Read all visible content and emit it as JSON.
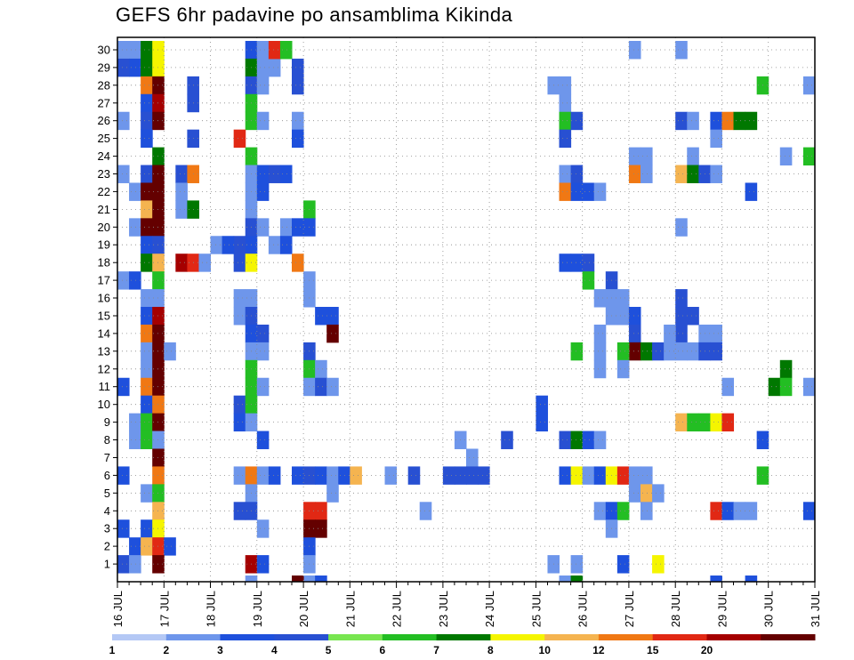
{
  "title": "GEFS 6hr padavine po ansamblima Kikinda",
  "chart_data": {
    "type": "heatmap",
    "title": "GEFS 6hr padavine po ansamblima Kikinda",
    "x_ticks": [
      "16 JUL",
      "17 JUL",
      "18 JUL",
      "19 JUL",
      "20 JUL",
      "21 JUL",
      "22 JUL",
      "23 JUL",
      "24 JUL",
      "25 JUL",
      "26 JUL",
      "27 JUL",
      "28 JUL",
      "29 JUL",
      "30 JUL",
      "31 JUL"
    ],
    "x_range": [
      "16 JUL 00UTC",
      "31 JUL 00UTC"
    ],
    "x_step": "6hr",
    "y_ticks": [
      1,
      2,
      3,
      4,
      5,
      6,
      7,
      8,
      9,
      10,
      11,
      12,
      13,
      14,
      15,
      16,
      17,
      18,
      19,
      20,
      21,
      22,
      23,
      24,
      25,
      26,
      27,
      28,
      29,
      30
    ],
    "grid": true,
    "colorbar": {
      "labels": [
        "1",
        "2",
        "3",
        "4",
        "5",
        "6",
        "7",
        "8",
        "10",
        "12",
        "15",
        "20"
      ],
      "colors": [
        "#b4c8f5",
        "#6e96eb",
        "#1e50dc",
        "#2850d2",
        "#78e650",
        "#23be23",
        "#007800",
        "#f5f500",
        "#f5b450",
        "#f07814",
        "#e12814",
        "#a50000",
        "#640000"
      ]
    },
    "cells": [
      [
        0,
        30,
        1
      ],
      [
        1,
        30,
        1
      ],
      [
        2,
        30,
        6
      ],
      [
        3,
        30,
        7
      ],
      [
        1,
        29,
        2
      ],
      [
        0,
        29,
        3
      ],
      [
        2,
        29,
        6
      ],
      [
        3,
        29,
        7
      ],
      [
        2,
        28,
        10
      ],
      [
        3,
        28,
        20
      ],
      [
        2,
        27,
        2
      ],
      [
        3,
        27,
        15
      ],
      [
        0,
        26,
        1
      ],
      [
        2,
        26,
        3
      ],
      [
        3,
        26,
        20
      ],
      [
        2,
        25,
        2
      ],
      [
        3,
        24,
        6
      ],
      [
        0,
        23,
        1
      ],
      [
        2,
        23,
        3
      ],
      [
        3,
        23,
        20
      ],
      [
        1,
        22,
        1
      ],
      [
        2,
        22,
        20
      ],
      [
        3,
        22,
        20
      ],
      [
        2,
        21,
        8
      ],
      [
        3,
        21,
        20
      ],
      [
        1,
        20,
        1
      ],
      [
        2,
        20,
        20
      ],
      [
        3,
        20,
        20
      ],
      [
        2,
        19,
        2
      ],
      [
        3,
        19,
        3
      ],
      [
        2,
        18,
        6
      ],
      [
        3,
        18,
        8
      ],
      [
        0,
        17,
        1
      ],
      [
        1,
        17,
        2
      ],
      [
        3,
        17,
        5
      ],
      [
        2,
        16,
        1
      ],
      [
        3,
        16,
        1
      ],
      [
        2,
        15,
        2
      ],
      [
        3,
        15,
        15
      ],
      [
        2,
        14,
        10
      ],
      [
        3,
        14,
        20
      ],
      [
        2,
        13,
        1
      ],
      [
        3,
        13,
        20
      ],
      [
        4,
        13,
        1
      ],
      [
        2,
        12,
        1
      ],
      [
        3,
        12,
        20
      ],
      [
        2,
        11,
        10
      ],
      [
        3,
        11,
        20
      ],
      [
        0,
        11,
        2
      ],
      [
        2,
        10,
        2
      ],
      [
        3,
        10,
        10
      ],
      [
        1,
        9,
        1
      ],
      [
        2,
        9,
        5
      ],
      [
        3,
        9,
        20
      ],
      [
        1,
        8,
        1
      ],
      [
        2,
        8,
        5
      ],
      [
        3,
        8,
        1
      ],
      [
        3,
        7,
        20
      ],
      [
        0,
        6,
        2
      ],
      [
        3,
        6,
        10
      ],
      [
        2,
        5,
        1
      ],
      [
        3,
        5,
        5
      ],
      [
        3,
        4,
        8
      ],
      [
        0,
        3,
        2
      ],
      [
        2,
        3,
        2
      ],
      [
        3,
        3,
        7
      ],
      [
        1,
        2,
        2
      ],
      [
        2,
        2,
        8
      ],
      [
        3,
        2,
        12
      ],
      [
        4,
        2,
        2
      ],
      [
        0,
        1,
        3
      ],
      [
        1,
        1,
        1
      ],
      [
        3,
        1,
        20
      ],
      [
        6,
        28,
        3
      ],
      [
        6,
        27,
        3
      ],
      [
        6,
        25,
        3
      ],
      [
        5,
        23,
        3
      ],
      [
        6,
        23,
        10
      ],
      [
        5,
        22,
        1
      ],
      [
        5,
        21,
        1
      ],
      [
        6,
        21,
        6
      ],
      [
        5,
        18,
        15
      ],
      [
        6,
        18,
        12
      ],
      [
        7,
        18,
        1
      ],
      [
        11,
        30,
        2
      ],
      [
        12,
        30,
        1
      ],
      [
        11,
        29,
        6
      ],
      [
        12,
        29,
        1
      ],
      [
        13,
        29,
        1
      ],
      [
        11,
        28,
        3
      ],
      [
        12,
        28,
        1
      ],
      [
        11,
        27,
        5
      ],
      [
        11,
        26,
        5
      ],
      [
        12,
        26,
        1
      ],
      [
        10,
        25,
        12
      ],
      [
        11,
        24,
        5
      ],
      [
        11,
        23,
        1
      ],
      [
        12,
        23,
        2
      ],
      [
        13,
        23,
        3
      ],
      [
        14,
        23,
        2
      ],
      [
        11,
        22,
        1
      ],
      [
        12,
        22,
        2
      ],
      [
        11,
        21,
        1
      ],
      [
        11,
        20,
        3
      ],
      [
        12,
        20,
        1
      ],
      [
        11,
        19,
        2
      ],
      [
        10,
        19,
        3
      ],
      [
        10,
        18,
        3
      ],
      [
        11,
        18,
        7
      ],
      [
        8,
        19,
        1
      ],
      [
        9,
        19,
        2
      ],
      [
        10,
        16,
        1
      ],
      [
        11,
        16,
        1
      ],
      [
        10,
        15,
        1
      ],
      [
        11,
        15,
        3
      ],
      [
        11,
        14,
        2
      ],
      [
        12,
        14,
        3
      ],
      [
        11,
        13,
        1
      ],
      [
        12,
        13,
        1
      ],
      [
        11,
        12,
        5
      ],
      [
        11,
        11,
        5
      ],
      [
        12,
        11,
        1
      ],
      [
        10,
        10,
        3
      ],
      [
        11,
        10,
        5
      ],
      [
        10,
        9,
        2
      ],
      [
        11,
        9,
        1
      ],
      [
        12,
        8,
        2
      ],
      [
        10,
        6,
        1
      ],
      [
        11,
        6,
        10
      ],
      [
        12,
        6,
        1
      ],
      [
        13,
        6,
        2
      ],
      [
        11,
        5,
        1
      ],
      [
        10,
        4,
        3
      ],
      [
        11,
        4,
        3
      ],
      [
        12,
        3,
        1
      ],
      [
        11,
        1,
        15
      ],
      [
        12,
        1,
        2
      ],
      [
        11,
        0,
        1
      ],
      [
        13,
        30,
        12
      ],
      [
        14,
        30,
        5
      ],
      [
        15,
        29,
        3
      ],
      [
        15,
        28,
        3
      ],
      [
        15,
        26,
        1
      ],
      [
        15,
        25,
        2
      ],
      [
        16,
        21,
        5
      ],
      [
        14,
        20,
        1
      ],
      [
        15,
        20,
        2
      ],
      [
        16,
        20,
        2
      ],
      [
        13,
        19,
        1
      ],
      [
        14,
        19,
        2
      ],
      [
        15,
        18,
        10
      ],
      [
        16,
        17,
        1
      ],
      [
        16,
        16,
        1
      ],
      [
        17,
        15,
        2
      ],
      [
        18,
        15,
        2
      ],
      [
        18,
        14,
        20
      ],
      [
        16,
        13,
        3
      ],
      [
        16,
        12,
        5
      ],
      [
        17,
        12,
        1
      ],
      [
        16,
        11,
        1
      ],
      [
        17,
        11,
        3
      ],
      [
        18,
        11,
        1
      ],
      [
        15,
        6,
        2
      ],
      [
        16,
        6,
        3
      ],
      [
        17,
        6,
        2
      ],
      [
        18,
        6,
        1
      ],
      [
        19,
        6,
        2
      ],
      [
        20,
        6,
        8
      ],
      [
        18,
        5,
        1
      ],
      [
        16,
        4,
        12
      ],
      [
        17,
        4,
        12
      ],
      [
        16,
        3,
        20
      ],
      [
        17,
        3,
        20
      ],
      [
        16,
        2,
        2
      ],
      [
        16,
        1,
        1
      ],
      [
        16,
        0,
        1
      ],
      [
        16,
        0,
        1
      ],
      [
        15,
        0,
        1
      ],
      [
        16,
        0,
        1
      ],
      [
        17,
        0,
        2
      ],
      [
        15,
        0,
        20
      ],
      [
        23,
        6,
        1
      ],
      [
        26,
        4,
        1
      ],
      [
        25,
        6,
        3
      ],
      [
        28,
        6,
        3
      ],
      [
        30,
        7,
        1
      ],
      [
        29,
        8,
        1
      ],
      [
        29,
        6,
        3
      ],
      [
        30,
        6,
        3
      ],
      [
        31,
        6,
        3
      ],
      [
        33,
        8,
        3
      ],
      [
        36,
        10,
        2
      ],
      [
        36,
        9,
        2
      ],
      [
        37,
        1,
        1
      ],
      [
        37,
        28,
        1
      ],
      [
        38,
        28,
        1
      ],
      [
        38,
        27,
        1
      ],
      [
        38,
        26,
        5
      ],
      [
        39,
        26,
        3
      ],
      [
        38,
        25,
        3
      ],
      [
        38,
        23,
        1
      ],
      [
        39,
        23,
        3
      ],
      [
        38,
        22,
        10
      ],
      [
        39,
        22,
        2
      ],
      [
        40,
        22,
        2
      ],
      [
        41,
        22,
        1
      ],
      [
        39,
        18,
        2
      ],
      [
        40,
        18,
        3
      ],
      [
        38,
        18,
        2
      ],
      [
        40,
        17,
        5
      ],
      [
        42,
        17,
        3
      ],
      [
        41,
        16,
        1
      ],
      [
        42,
        16,
        1
      ],
      [
        43,
        16,
        1
      ],
      [
        42,
        15,
        1
      ],
      [
        43,
        15,
        1
      ],
      [
        44,
        15,
        2
      ],
      [
        44,
        14,
        3
      ],
      [
        41,
        14,
        1
      ],
      [
        44,
        13,
        20
      ],
      [
        45,
        13,
        6
      ],
      [
        46,
        13,
        3
      ],
      [
        47,
        13,
        1
      ],
      [
        39,
        13,
        5
      ],
      [
        41,
        13,
        1
      ],
      [
        43,
        13,
        5
      ],
      [
        41,
        12,
        1
      ],
      [
        43,
        12,
        1
      ],
      [
        38,
        8,
        3
      ],
      [
        39,
        8,
        6
      ],
      [
        40,
        8,
        2
      ],
      [
        41,
        8,
        1
      ],
      [
        38,
        6,
        2
      ],
      [
        39,
        6,
        7
      ],
      [
        40,
        6,
        1
      ],
      [
        41,
        6,
        2
      ],
      [
        42,
        6,
        7
      ],
      [
        43,
        6,
        12
      ],
      [
        44,
        6,
        1
      ],
      [
        45,
        6,
        1
      ],
      [
        44,
        5,
        1
      ],
      [
        45,
        5,
        8
      ],
      [
        46,
        5,
        1
      ],
      [
        41,
        4,
        1
      ],
      [
        42,
        4,
        2
      ],
      [
        43,
        4,
        5
      ],
      [
        45,
        4,
        1
      ],
      [
        42,
        3,
        1
      ],
      [
        39,
        1,
        1
      ],
      [
        43,
        1,
        2
      ],
      [
        46,
        1,
        7
      ],
      [
        38,
        0,
        1
      ],
      [
        39,
        0,
        6
      ],
      [
        44,
        30,
        1
      ],
      [
        48,
        30,
        1
      ],
      [
        48,
        26,
        3
      ],
      [
        49,
        26,
        1
      ],
      [
        51,
        26,
        2
      ],
      [
        52,
        26,
        10
      ],
      [
        53,
        26,
        6
      ],
      [
        54,
        26,
        6
      ],
      [
        51,
        25,
        1
      ],
      [
        44,
        24,
        1
      ],
      [
        45,
        24,
        1
      ],
      [
        49,
        24,
        1
      ],
      [
        44,
        23,
        10
      ],
      [
        45,
        23,
        1
      ],
      [
        48,
        23,
        8
      ],
      [
        49,
        23,
        6
      ],
      [
        50,
        23,
        3
      ],
      [
        51,
        23,
        1
      ],
      [
        48,
        20,
        1
      ],
      [
        48,
        16,
        3
      ],
      [
        48,
        15,
        3
      ],
      [
        49,
        15,
        3
      ],
      [
        48,
        14,
        3
      ],
      [
        47,
        14,
        1
      ],
      [
        50,
        14,
        1
      ],
      [
        51,
        14,
        1
      ],
      [
        48,
        13,
        1
      ],
      [
        49,
        13,
        1
      ],
      [
        50,
        13,
        3
      ],
      [
        51,
        13,
        3
      ],
      [
        52,
        11,
        1
      ],
      [
        48,
        9,
        8
      ],
      [
        49,
        9,
        5
      ],
      [
        50,
        9,
        5
      ],
      [
        51,
        9,
        7
      ],
      [
        52,
        9,
        12
      ],
      [
        51,
        4,
        12
      ],
      [
        52,
        4,
        2
      ],
      [
        53,
        4,
        1
      ],
      [
        54,
        4,
        1
      ],
      [
        51,
        0,
        2
      ],
      [
        54,
        0,
        2
      ],
      [
        54,
        22,
        2
      ],
      [
        55,
        28,
        5
      ],
      [
        57,
        24,
        1
      ],
      [
        57,
        12,
        6
      ],
      [
        56,
        11,
        6
      ],
      [
        57,
        11,
        5
      ],
      [
        59,
        11,
        1
      ],
      [
        55,
        8,
        2
      ],
      [
        55,
        6,
        5
      ],
      [
        59,
        4,
        2
      ],
      [
        59,
        28,
        1
      ],
      [
        59,
        24,
        5
      ]
    ]
  }
}
